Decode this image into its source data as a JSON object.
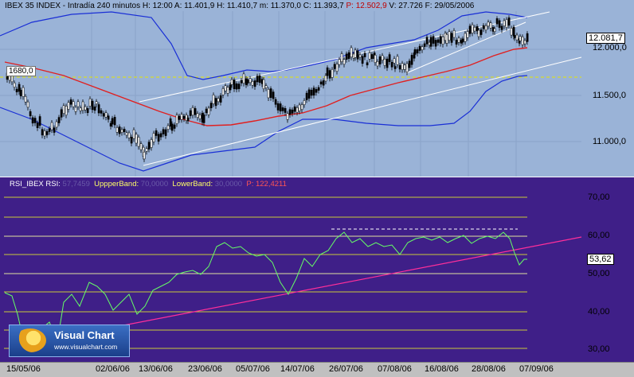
{
  "header": {
    "symbol": "IBEX 35 INDEX",
    "interval": "Intradía 240 minutos",
    "high": "H: 12:00",
    "a": "A: 11.401,9",
    "h": "H: 11.410,7",
    "m": "m: 11.370,0",
    "c": "C: 11.393,7",
    "p": "P: 12.502,9",
    "v": "V: 27.726",
    "f": "F: 29/05/2006"
  },
  "price_axis": [
    "12.000,0",
    "11.500,0",
    "11.000,0"
  ],
  "price_current": "12.081,7",
  "tag_1680": "1680,0",
  "rsi_header": {
    "name": "RSI_IBEX RSI:",
    "name_val": "57,7459",
    "upper": "UppperBand:",
    "upper_val": "70,0000",
    "lower": "LowerBand:",
    "lower_val": "30,0000",
    "p": "P: 122,4211"
  },
  "rsi_axis": [
    "70,00",
    "60,00",
    "50,00",
    "40,00",
    "30,00"
  ],
  "rsi_current": "53,62",
  "dates": [
    "15/05/06",
    "02/06/06",
    "13/06/06",
    "23/06/06",
    "05/07/06",
    "14/07/06",
    "26/07/06",
    "07/08/06",
    "16/08/06",
    "28/08/06",
    "07/09/06"
  ],
  "logo": {
    "title": "Visual Chart",
    "url": "www.visualchart.com"
  },
  "colors": {
    "price_panel": "#9ab3d7",
    "rsi_panel": "#3f1f88",
    "rsi_line": "#66ff66",
    "mavg": "#e02020",
    "bands": "#1a2fd6",
    "trend": "#ffffff",
    "rsi_trend": "#ff2f9a",
    "guides": "#c9c93a"
  }
}
